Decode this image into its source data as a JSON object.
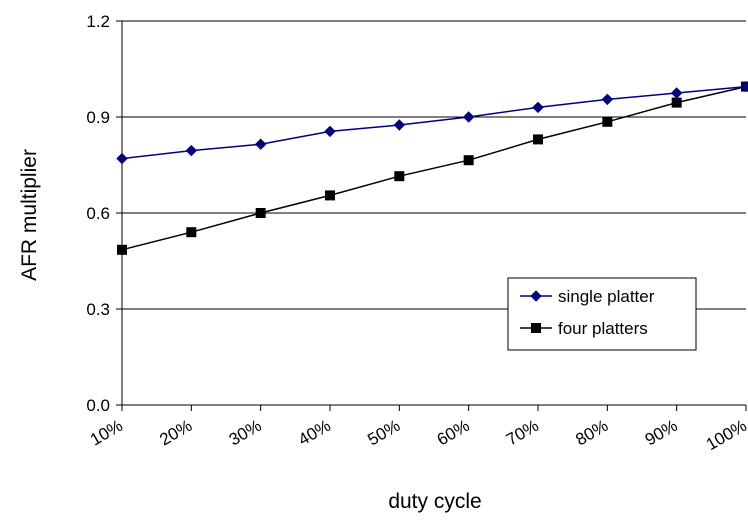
{
  "chart_data": {
    "type": "line",
    "categories": [
      "10%",
      "20%",
      "30%",
      "40%",
      "50%",
      "60%",
      "70%",
      "80%",
      "90%",
      "100%"
    ],
    "series": [
      {
        "name": "single platter",
        "values": [
          0.77,
          0.795,
          0.815,
          0.855,
          0.875,
          0.9,
          0.93,
          0.955,
          0.975,
          0.995
        ],
        "color": "#000080",
        "marker": "diamond"
      },
      {
        "name": "four platters",
        "values": [
          0.485,
          0.54,
          0.6,
          0.655,
          0.715,
          0.765,
          0.83,
          0.885,
          0.945,
          0.995
        ],
        "color": "#000000",
        "marker": "square"
      }
    ],
    "yticks": [
      "0.0",
      "0.3",
      "0.6",
      "0.9",
      "1.2"
    ],
    "ylim": [
      0,
      1.2
    ],
    "xlabel": "duty cycle",
    "ylabel": "AFR multiplier",
    "grid": "horizontal",
    "legend_position": "center-right"
  }
}
